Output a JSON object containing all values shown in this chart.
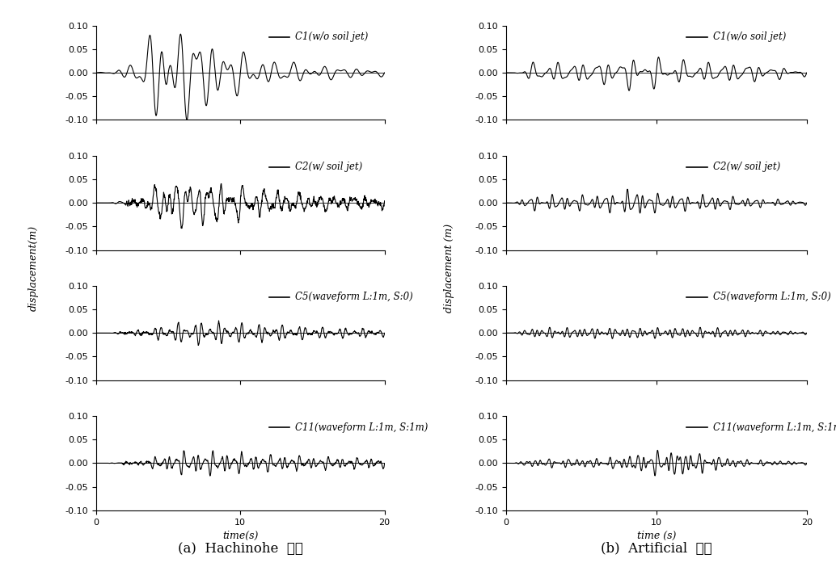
{
  "title_a": "(a)  Hachinohe  지진",
  "title_b": "(b)  Artificial  지진",
  "ylabel_a": "displacement(m)",
  "ylabel_b": "displacement (m)",
  "xlabel_a": "time(s)",
  "xlabel_b": "time (s)",
  "xlim": [
    0,
    20
  ],
  "ylim": [
    -0.1,
    0.1
  ],
  "yticks": [
    -0.1,
    -0.05,
    0.0,
    0.05,
    0.1
  ],
  "xticks": [
    0,
    10,
    20
  ],
  "legend_labels": [
    "C1(w/o soil jet)",
    "C2(w/ soil jet)",
    "C5(waveform L:1m, S:0)",
    "C11(waveform L:1m, S:1m)"
  ],
  "bg_color": "#ffffff",
  "line_color": "#000000",
  "label_fontsize": 9,
  "tick_fontsize": 8,
  "title_fontsize": 11,
  "legend_fontsize": 8.5,
  "caption_fontsize": 12
}
